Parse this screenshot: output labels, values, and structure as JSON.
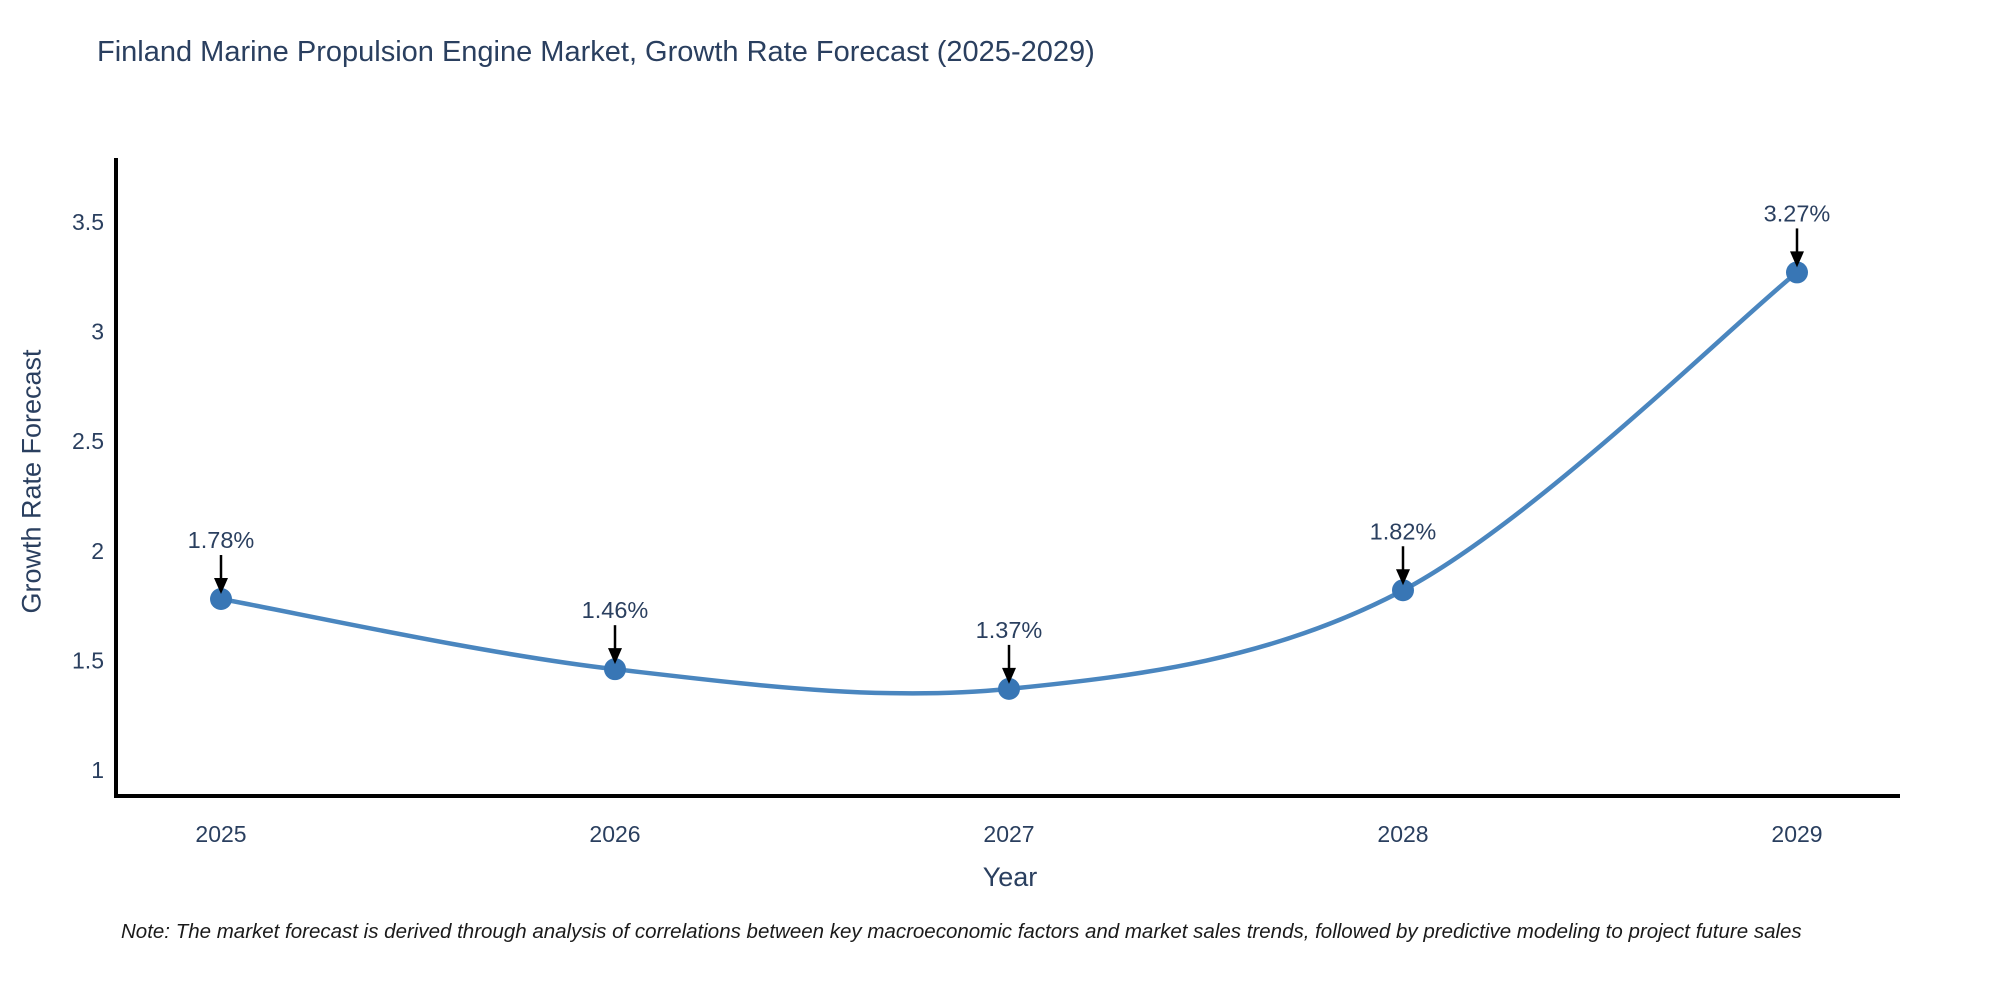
{
  "header": {
    "title": "Finland Marine Propulsion Engine Market, Growth Rate Forecast (2025-2029)"
  },
  "footer": {
    "note": "Note: The market forecast is derived through analysis of correlations between key macroeconomic factors and market sales trends, followed by predictive modeling to project future sales"
  },
  "chart_data": {
    "type": "line",
    "title": "Finland Marine Propulsion Engine Market, Growth Rate Forecast (2025-2029)",
    "xlabel": "Year",
    "ylabel": "Growth Rate Forecast",
    "x": [
      2025,
      2026,
      2027,
      2028,
      2029
    ],
    "y": [
      1.78,
      1.46,
      1.37,
      1.82,
      3.27
    ],
    "point_labels": [
      "1.78%",
      "1.46%",
      "1.37%",
      "1.82%",
      "3.27%"
    ],
    "yticks": [
      1,
      1.5,
      2,
      2.5,
      3,
      3.5
    ],
    "ytick_labels": [
      "1",
      "1.5",
      "2",
      "2.5",
      "3",
      "3.5"
    ],
    "xtick_labels": [
      "2025",
      "2026",
      "2027",
      "2028",
      "2029"
    ],
    "ylim": [
      0.88,
      3.79
    ],
    "grid": false,
    "legend": "none",
    "line_shape": "spline",
    "colors": {
      "line": "#4a86bf",
      "marker": "#3876b5",
      "axis": "#000000",
      "text": "#2a3f5f",
      "annotation_arrow": "#000000"
    }
  }
}
